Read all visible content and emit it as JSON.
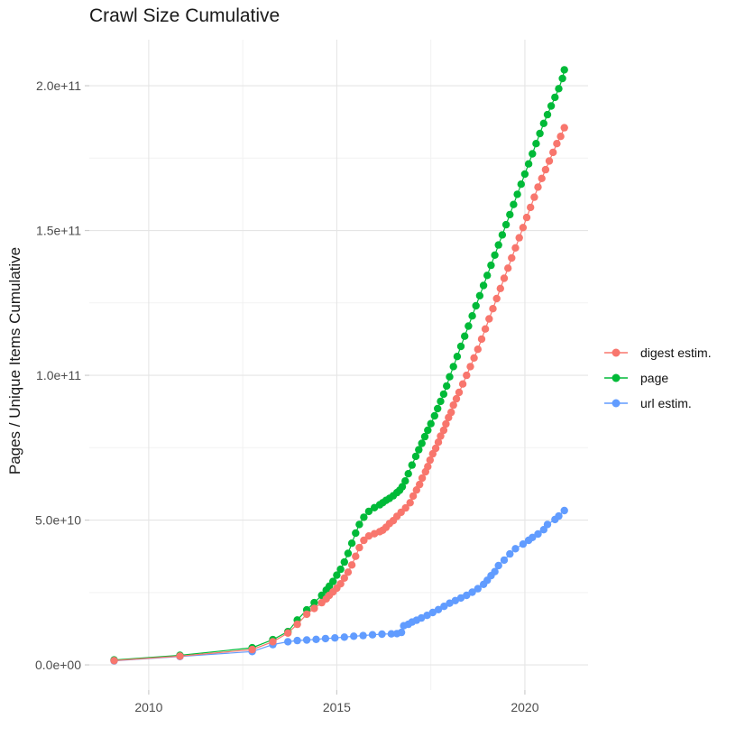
{
  "chart_data": {
    "type": "line",
    "marker": "point",
    "title": "Crawl Size Cumulative",
    "xlabel": "",
    "ylabel": "Pages / Unique Items Cumulative",
    "xlim": [
      2008.42,
      2021.68
    ],
    "ylim": [
      -8700000000.0,
      215900000000.0
    ],
    "grid": "on",
    "legend_position": "right",
    "x_ticks": [
      2010,
      2015,
      2020
    ],
    "x_tick_labels": [
      "2010",
      "2015",
      "2020"
    ],
    "x_minor_ticks": [
      2012.5,
      2017.5
    ],
    "y_ticks": [
      0,
      50000000000.0,
      100000000000.0,
      150000000000.0,
      200000000000.0
    ],
    "y_tick_labels": [
      "0.0e+00",
      "5.0e+10",
      "1.0e+11",
      "1.5e+11",
      "2.0e+11"
    ],
    "y_minor_ticks": [
      25000000000.0,
      75000000000.0,
      125000000000.0,
      175000000000.0
    ],
    "series": [
      {
        "name": "digest estim.",
        "key": "digest-estim",
        "color": "#F8766D",
        "points": [
          [
            2009.08,
            1500000000.0
          ],
          [
            2010.83,
            3000000000.0
          ],
          [
            2012.75,
            5300000000.0
          ],
          [
            2013.3,
            8000000000.0
          ],
          [
            2013.7,
            11000000000.0
          ],
          [
            2013.95,
            14000000000.0
          ],
          [
            2014.2,
            17500000000.0
          ],
          [
            2014.4,
            19500000000.0
          ],
          [
            2014.6,
            21500000000.0
          ],
          [
            2014.72,
            22800000000.0
          ],
          [
            2014.8,
            24000000000.0
          ],
          [
            2014.9,
            25200000000.0
          ],
          [
            2015.0,
            26500000000.0
          ],
          [
            2015.1,
            28000000000.0
          ],
          [
            2015.2,
            30000000000.0
          ],
          [
            2015.3,
            32000000000.0
          ],
          [
            2015.4,
            34500000000.0
          ],
          [
            2015.5,
            37500000000.0
          ],
          [
            2015.6,
            40500000000.0
          ],
          [
            2015.72,
            43000000000.0
          ],
          [
            2015.85,
            44500000000.0
          ],
          [
            2016.0,
            45300000000.0
          ],
          [
            2016.14,
            46000000000.0
          ],
          [
            2016.22,
            46500000000.0
          ],
          [
            2016.31,
            47500000000.0
          ],
          [
            2016.4,
            48800000000.0
          ],
          [
            2016.5,
            49800000000.0
          ],
          [
            2016.6,
            51300000000.0
          ],
          [
            2016.71,
            52700000000.0
          ],
          [
            2016.83,
            54200000000.0
          ],
          [
            2016.95,
            56000000000.0
          ],
          [
            2017.03,
            58300000000.0
          ],
          [
            2017.12,
            60400000000.0
          ],
          [
            2017.2,
            62300000000.0
          ],
          [
            2017.27,
            64500000000.0
          ],
          [
            2017.36,
            66700000000.0
          ],
          [
            2017.42,
            68500000000.0
          ],
          [
            2017.48,
            70700000000.0
          ],
          [
            2017.55,
            72900000000.0
          ],
          [
            2017.63,
            74800000000.0
          ],
          [
            2017.7,
            76900000000.0
          ],
          [
            2017.76,
            79000000000.0
          ],
          [
            2017.84,
            81000000000.0
          ],
          [
            2017.9,
            83200000000.0
          ],
          [
            2017.97,
            85400000000.0
          ],
          [
            2018.04,
            87200000000.0
          ],
          [
            2018.1,
            89700000000.0
          ],
          [
            2018.18,
            91900000000.0
          ],
          [
            2018.25,
            94100000000.0
          ],
          [
            2018.35,
            97000000000.0
          ],
          [
            2018.45,
            100000000000.0
          ],
          [
            2018.55,
            103000000000.0
          ],
          [
            2018.65,
            106000000000.0
          ],
          [
            2018.75,
            109000000000.0
          ],
          [
            2018.85,
            112500000000.0
          ],
          [
            2018.95,
            116000000000.0
          ],
          [
            2019.05,
            119500000000.0
          ],
          [
            2019.15,
            123000000000.0
          ],
          [
            2019.25,
            126500000000.0
          ],
          [
            2019.35,
            130000000000.0
          ],
          [
            2019.45,
            133500000000.0
          ],
          [
            2019.55,
            137000000000.0
          ],
          [
            2019.65,
            140500000000.0
          ],
          [
            2019.75,
            144000000000.0
          ],
          [
            2019.85,
            147500000000.0
          ],
          [
            2019.95,
            151000000000.0
          ],
          [
            2020.05,
            154500000000.0
          ],
          [
            2020.15,
            158000000000.0
          ],
          [
            2020.25,
            161500000000.0
          ],
          [
            2020.35,
            165000000000.0
          ],
          [
            2020.45,
            168000000000.0
          ],
          [
            2020.55,
            171000000000.0
          ],
          [
            2020.65,
            174000000000.0
          ],
          [
            2020.75,
            177000000000.0
          ],
          [
            2020.85,
            180000000000.0
          ],
          [
            2020.95,
            182500000000.0
          ],
          [
            2021.05,
            185500000000.0
          ]
        ]
      },
      {
        "name": "page",
        "key": "page",
        "color": "#00BA38",
        "points": [
          [
            2009.08,
            1700000000.0
          ],
          [
            2010.83,
            3300000000.0
          ],
          [
            2012.75,
            5900000000.0
          ],
          [
            2013.3,
            8700000000.0
          ],
          [
            2013.7,
            11500000000.0
          ],
          [
            2013.95,
            15500000000.0
          ],
          [
            2014.2,
            19000000000.0
          ],
          [
            2014.4,
            21500000000.0
          ],
          [
            2014.6,
            24000000000.0
          ],
          [
            2014.72,
            25800000000.0
          ],
          [
            2014.8,
            27200000000.0
          ],
          [
            2014.9,
            28800000000.0
          ],
          [
            2015.0,
            31000000000.0
          ],
          [
            2015.1,
            33000000000.0
          ],
          [
            2015.2,
            35500000000.0
          ],
          [
            2015.3,
            38500000000.0
          ],
          [
            2015.4,
            42000000000.0
          ],
          [
            2015.5,
            45500000000.0
          ],
          [
            2015.6,
            48500000000.0
          ],
          [
            2015.72,
            51000000000.0
          ],
          [
            2015.85,
            53000000000.0
          ],
          [
            2016.0,
            54300000000.0
          ],
          [
            2016.14,
            55300000000.0
          ],
          [
            2016.22,
            56000000000.0
          ],
          [
            2016.31,
            56800000000.0
          ],
          [
            2016.4,
            57500000000.0
          ],
          [
            2016.5,
            58400000000.0
          ],
          [
            2016.6,
            59500000000.0
          ],
          [
            2016.67,
            60300000000.0
          ],
          [
            2016.74,
            61500000000.0
          ],
          [
            2016.82,
            63500000000.0
          ],
          [
            2016.9,
            66000000000.0
          ],
          [
            2017.0,
            69000000000.0
          ],
          [
            2017.1,
            72000000000.0
          ],
          [
            2017.18,
            74300000000.0
          ],
          [
            2017.26,
            76500000000.0
          ],
          [
            2017.34,
            78800000000.0
          ],
          [
            2017.42,
            81000000000.0
          ],
          [
            2017.5,
            83300000000.0
          ],
          [
            2017.6,
            86000000000.0
          ],
          [
            2017.68,
            88500000000.0
          ],
          [
            2017.76,
            91000000000.0
          ],
          [
            2017.84,
            93500000000.0
          ],
          [
            2017.92,
            96300000000.0
          ],
          [
            2018.0,
            99500000000.0
          ],
          [
            2018.1,
            103000000000.0
          ],
          [
            2018.2,
            106500000000.0
          ],
          [
            2018.3,
            110000000000.0
          ],
          [
            2018.4,
            113500000000.0
          ],
          [
            2018.5,
            117000000000.0
          ],
          [
            2018.6,
            120500000000.0
          ],
          [
            2018.7,
            124000000000.0
          ],
          [
            2018.8,
            127500000000.0
          ],
          [
            2018.9,
            131000000000.0
          ],
          [
            2019.0,
            134500000000.0
          ],
          [
            2019.1,
            138000000000.0
          ],
          [
            2019.2,
            141500000000.0
          ],
          [
            2019.3,
            145000000000.0
          ],
          [
            2019.4,
            148500000000.0
          ],
          [
            2019.5,
            152000000000.0
          ],
          [
            2019.6,
            155500000000.0
          ],
          [
            2019.7,
            159000000000.0
          ],
          [
            2019.8,
            162500000000.0
          ],
          [
            2019.9,
            166000000000.0
          ],
          [
            2020.0,
            169500000000.0
          ],
          [
            2020.1,
            173000000000.0
          ],
          [
            2020.2,
            176500000000.0
          ],
          [
            2020.3,
            180000000000.0
          ],
          [
            2020.4,
            183500000000.0
          ],
          [
            2020.5,
            187000000000.0
          ],
          [
            2020.6,
            190000000000.0
          ],
          [
            2020.7,
            193000000000.0
          ],
          [
            2020.8,
            196000000000.0
          ],
          [
            2020.9,
            199000000000.0
          ],
          [
            2021.0,
            202500000000.0
          ],
          [
            2021.05,
            205500000000.0
          ]
        ]
      },
      {
        "name": "url estim.",
        "key": "url-estim",
        "color": "#619CFF",
        "points": [
          [
            2009.08,
            1400000000.0
          ],
          [
            2010.83,
            2900000000.0
          ],
          [
            2012.75,
            4600000000.0
          ],
          [
            2013.3,
            7000000000.0
          ],
          [
            2013.7,
            8000000000.0
          ],
          [
            2013.95,
            8400000000.0
          ],
          [
            2014.2,
            8600000000.0
          ],
          [
            2014.45,
            8800000000.0
          ],
          [
            2014.7,
            9100000000.0
          ],
          [
            2014.95,
            9300000000.0
          ],
          [
            2015.2,
            9600000000.0
          ],
          [
            2015.45,
            9900000000.0
          ],
          [
            2015.7,
            10100000000.0
          ],
          [
            2015.95,
            10400000000.0
          ],
          [
            2016.2,
            10600000000.0
          ],
          [
            2016.45,
            10700000000.0
          ],
          [
            2016.6,
            10800000000.0
          ],
          [
            2016.72,
            11200000000.0
          ],
          [
            2016.78,
            13500000000.0
          ],
          [
            2016.9,
            14000000000.0
          ],
          [
            2017.0,
            14800000000.0
          ],
          [
            2017.12,
            15400000000.0
          ],
          [
            2017.25,
            16200000000.0
          ],
          [
            2017.4,
            17100000000.0
          ],
          [
            2017.55,
            18100000000.0
          ],
          [
            2017.7,
            19100000000.0
          ],
          [
            2017.85,
            20200000000.0
          ],
          [
            2018.0,
            21300000000.0
          ],
          [
            2018.15,
            22200000000.0
          ],
          [
            2018.3,
            23100000000.0
          ],
          [
            2018.45,
            24000000000.0
          ],
          [
            2018.6,
            25100000000.0
          ],
          [
            2018.75,
            26300000000.0
          ],
          [
            2018.9,
            27800000000.0
          ],
          [
            2019.0,
            29200000000.0
          ],
          [
            2019.1,
            30800000000.0
          ],
          [
            2019.2,
            32200000000.0
          ],
          [
            2019.3,
            34300000000.0
          ],
          [
            2019.45,
            36200000000.0
          ],
          [
            2019.6,
            38300000000.0
          ],
          [
            2019.75,
            40100000000.0
          ],
          [
            2019.95,
            41700000000.0
          ],
          [
            2020.1,
            43000000000.0
          ],
          [
            2020.2,
            44000000000.0
          ],
          [
            2020.35,
            45200000000.0
          ],
          [
            2020.5,
            46700000000.0
          ],
          [
            2020.6,
            48500000000.0
          ],
          [
            2020.8,
            50200000000.0
          ],
          [
            2020.9,
            51400000000.0
          ],
          [
            2021.05,
            53300000000.0
          ]
        ]
      }
    ],
    "colors": {
      "grid_major": "#e5e5e5",
      "grid_minor": "#f2f2f2",
      "tick_mark": "#cccccc",
      "tick_label": "#4d4d4d",
      "text": "#1a1a1a"
    }
  }
}
